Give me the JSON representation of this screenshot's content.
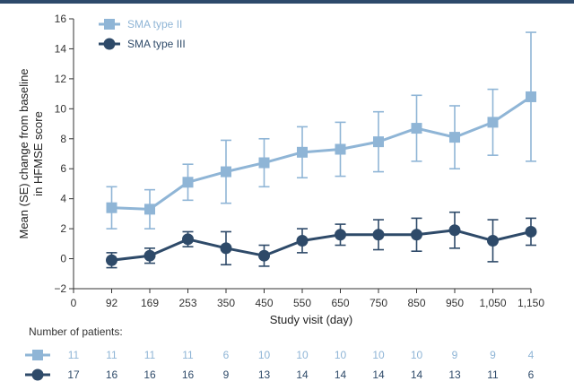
{
  "chart_data": {
    "type": "line",
    "title": "",
    "xlabel": "Study visit (day)",
    "ylabel": [
      "Mean (SE) change from baseline",
      "in HFMSE score"
    ],
    "x": [
      "0",
      "92",
      "169",
      "253",
      "350",
      "450",
      "550",
      "650",
      "750",
      "850",
      "950",
      "1,050",
      "1,150"
    ],
    "ylim": [
      -2,
      16
    ],
    "yticks": [
      "−2",
      "0",
      "2",
      "4",
      "6",
      "8",
      "10",
      "12",
      "14",
      "16"
    ],
    "grid": false,
    "legend_position": "top-left",
    "series": [
      {
        "name": "SMA type II",
        "color": "#8fb5d6",
        "marker": "square",
        "values": [
          null,
          3.4,
          3.3,
          5.1,
          5.8,
          6.4,
          7.1,
          7.3,
          7.8,
          8.7,
          8.1,
          9.1,
          10.8
        ],
        "errors": [
          null,
          1.4,
          1.3,
          1.2,
          2.1,
          1.6,
          1.7,
          1.8,
          2.0,
          2.2,
          2.1,
          2.2,
          4.3
        ],
        "n_patients": [
          "11",
          "11",
          "11",
          "11",
          "6",
          "10",
          "10",
          "10",
          "10",
          "10",
          "9",
          "9",
          "4"
        ]
      },
      {
        "name": "SMA type III",
        "color": "#2e4a69",
        "marker": "circle",
        "values": [
          null,
          -0.1,
          0.2,
          1.3,
          0.7,
          0.2,
          1.2,
          1.6,
          1.6,
          1.6,
          1.9,
          1.2,
          1.8
        ],
        "errors": [
          null,
          0.5,
          0.5,
          0.5,
          1.1,
          0.7,
          0.8,
          0.7,
          1.0,
          1.1,
          1.2,
          1.4,
          0.9
        ],
        "n_patients": [
          "17",
          "16",
          "16",
          "16",
          "9",
          "13",
          "14",
          "14",
          "14",
          "14",
          "13",
          "11",
          "6"
        ]
      }
    ],
    "patients_table_title": "Number of patients:"
  }
}
